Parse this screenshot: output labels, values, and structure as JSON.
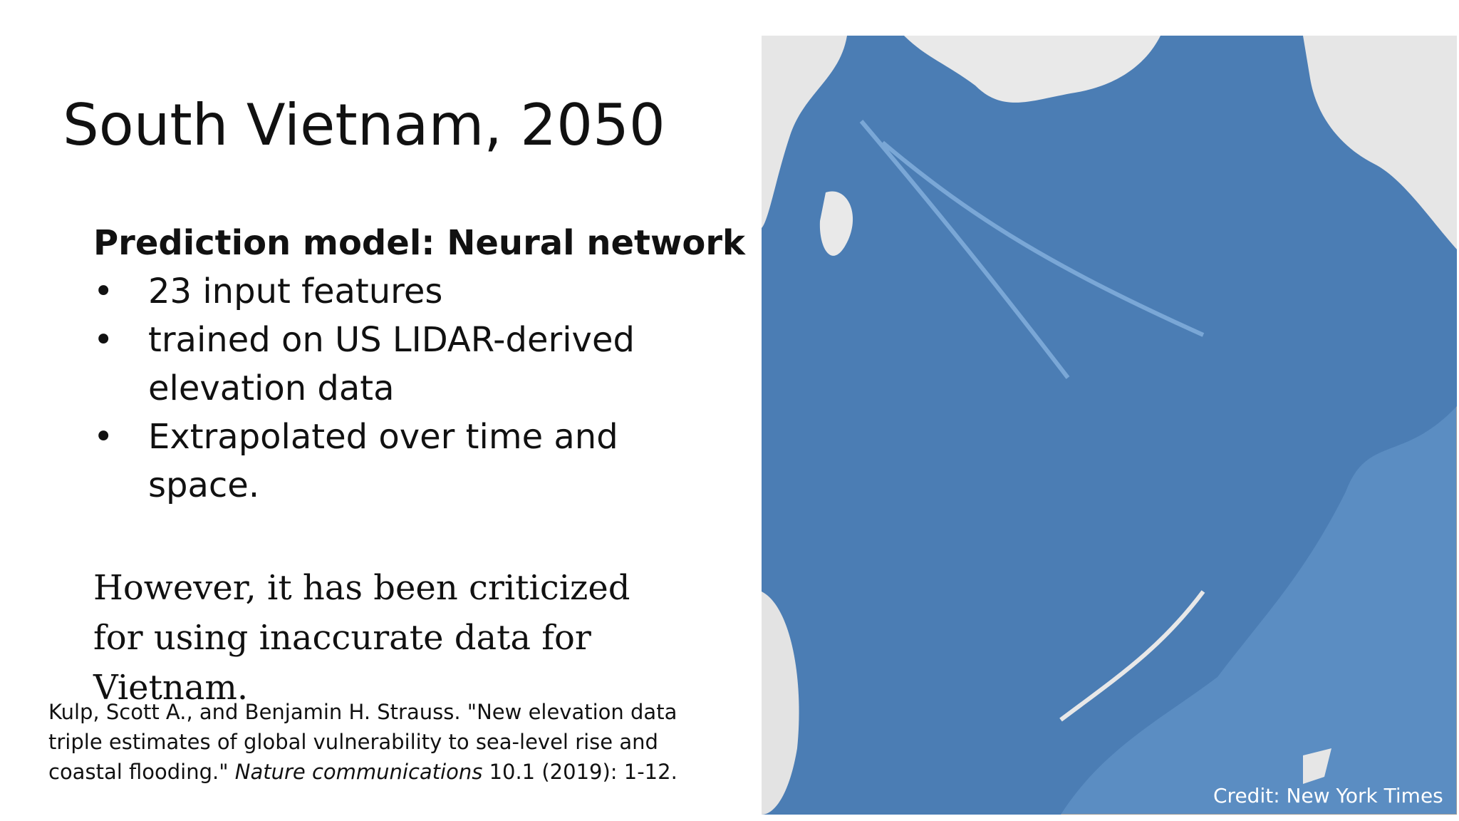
{
  "title": "South Vietnam, 2050",
  "heading": "Prediction model: Neural network",
  "bullets": [
    "23 input features",
    "trained on US LIDAR-derived elevation data",
    "Extrapolated over time and space."
  ],
  "note": "However, it has been criticized for using inaccurate data for Vietnam.",
  "citation": {
    "before": "Kulp, Scott A., and Benjamin H. Strauss. \"New elevation data triple estimates of global vulnerability to sea-level rise and coastal flooding.\"",
    "journal": "Nature communications",
    "after": "10.1 (2019): 1-12."
  },
  "credit": "Credit: New York Times"
}
